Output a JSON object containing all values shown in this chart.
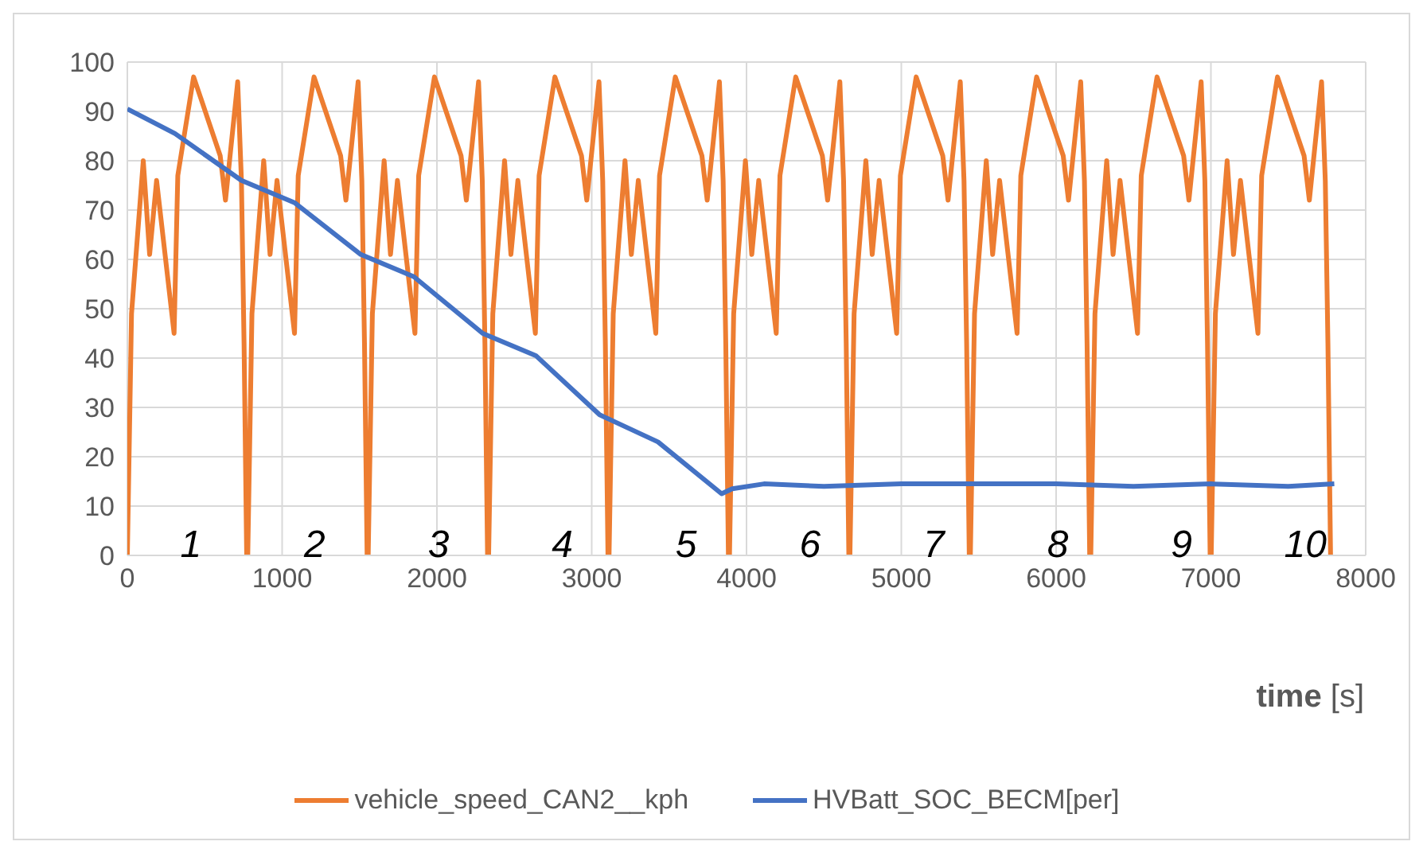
{
  "chart_data": {
    "type": "line",
    "xlabel": "time [s]",
    "xlim": [
      0,
      8000
    ],
    "xticks": [
      0,
      1000,
      2000,
      3000,
      4000,
      5000,
      6000,
      7000,
      8000
    ],
    "ylim": [
      0,
      100
    ],
    "yticks": [
      0,
      10,
      20,
      30,
      40,
      50,
      60,
      70,
      80,
      90,
      100
    ],
    "grid": true,
    "legend": "bottom",
    "marker": "none",
    "line_style": "solid",
    "series": [
      {
        "name": "vehicle_speed_CAN2__kph",
        "color": "#ed7d31",
        "x": [
          0,
          27,
          103,
          144,
          189,
          302,
          326,
          428,
          514,
          600,
          634,
          713,
          737,
          754,
          771,
          778,
          805,
          881,
          922,
          967,
          1080,
          1104,
          1206,
          1292,
          1378,
          1412,
          1491,
          1515,
          1532,
          1549,
          1556,
          1583,
          1659,
          1700,
          1745,
          1858,
          1882,
          1984,
          2070,
          2156,
          2190,
          2269,
          2293,
          2310,
          2327,
          2334,
          2361,
          2437,
          2478,
          2523,
          2636,
          2660,
          2762,
          2848,
          2934,
          2968,
          3047,
          3071,
          3088,
          3105,
          3112,
          3139,
          3215,
          3256,
          3301,
          3414,
          3438,
          3540,
          3626,
          3712,
          3746,
          3825,
          3849,
          3866,
          3883,
          3890,
          3917,
          3993,
          4034,
          4079,
          4192,
          4216,
          4318,
          4404,
          4490,
          4524,
          4603,
          4627,
          4644,
          4661,
          4668,
          4695,
          4771,
          4812,
          4857,
          4970,
          4994,
          5096,
          5182,
          5268,
          5302,
          5381,
          5405,
          5422,
          5439,
          5446,
          5473,
          5549,
          5590,
          5635,
          5748,
          5772,
          5874,
          5960,
          6046,
          6080,
          6159,
          6183,
          6200,
          6217,
          6224,
          6251,
          6327,
          6368,
          6413,
          6526,
          6550,
          6652,
          6738,
          6824,
          6858,
          6937,
          6961,
          6978,
          6995,
          7002,
          7029,
          7105,
          7146,
          7191,
          7304,
          7328,
          7430,
          7516,
          7602,
          7636,
          7715,
          7739,
          7756,
          7773
        ],
        "values": [
          0,
          49,
          80,
          61,
          76,
          45,
          77,
          97,
          89,
          81,
          72,
          96,
          76,
          43,
          0,
          0,
          49,
          80,
          61,
          76,
          45,
          77,
          97,
          89,
          81,
          72,
          96,
          76,
          43,
          0,
          0,
          49,
          80,
          61,
          76,
          45,
          77,
          97,
          89,
          81,
          72,
          96,
          76,
          43,
          0,
          0,
          49,
          80,
          61,
          76,
          45,
          77,
          97,
          89,
          81,
          72,
          96,
          76,
          43,
          0,
          0,
          49,
          80,
          61,
          76,
          45,
          77,
          97,
          89,
          81,
          72,
          96,
          76,
          43,
          0,
          0,
          49,
          80,
          61,
          76,
          45,
          77,
          97,
          89,
          81,
          72,
          96,
          76,
          43,
          0,
          0,
          49,
          80,
          61,
          76,
          45,
          77,
          97,
          89,
          81,
          72,
          96,
          76,
          43,
          0,
          0,
          49,
          80,
          61,
          76,
          45,
          77,
          97,
          89,
          81,
          72,
          96,
          76,
          43,
          0,
          0,
          49,
          80,
          61,
          76,
          45,
          77,
          97,
          89,
          81,
          72,
          96,
          76,
          43,
          0,
          0,
          49,
          80,
          61,
          76,
          45,
          77,
          97,
          89,
          81,
          72,
          96,
          76,
          43,
          0
        ]
      },
      {
        "name": "HVBatt_SOC_BECM[per]",
        "color": "#4472c4",
        "x": [
          0,
          308,
          737,
          1080,
          1508,
          1851,
          2296,
          2639,
          3051,
          3428,
          3839,
          3908,
          4113,
          4500,
          5000,
          5500,
          6000,
          6500,
          7000,
          7500,
          7797
        ],
        "values": [
          90.5,
          85.5,
          76,
          71.5,
          61,
          56.5,
          45,
          40.5,
          28.5,
          23,
          12.5,
          13.5,
          14.5,
          14,
          14.5,
          14.5,
          14.5,
          14,
          14.5,
          14,
          14.5
        ]
      }
    ],
    "annotations": [
      "1",
      "2",
      "3",
      "4",
      "5",
      "6",
      "7",
      "8",
      "9",
      "10"
    ]
  }
}
